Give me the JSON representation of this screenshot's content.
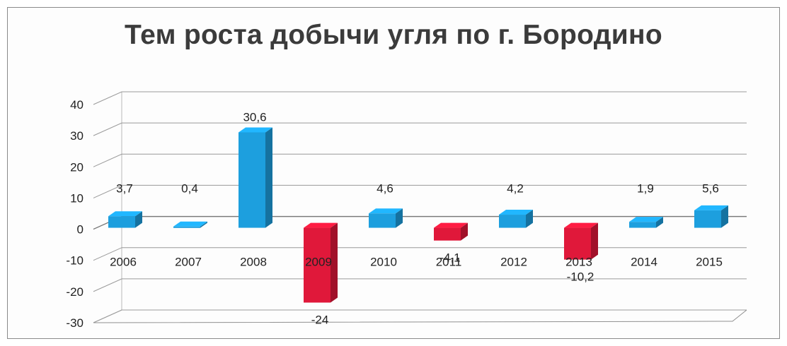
{
  "chart_data": {
    "type": "bar",
    "title": "Тем роста добычи угля по г. Бородино",
    "categories": [
      "2006",
      "2007",
      "2008",
      "2009",
      "2010",
      "2011",
      "2012",
      "2013",
      "2014",
      "2015"
    ],
    "values": [
      3.7,
      0.4,
      30.6,
      -24,
      4.6,
      -4.1,
      4.2,
      -10.2,
      1.9,
      5.6
    ],
    "data_labels": [
      "3,7",
      "0,4",
      "30,6",
      "-24",
      "4,6",
      "-4,1",
      "4,2",
      "-10,2",
      "1,9",
      "5,6"
    ],
    "ylim": [
      -30,
      40
    ],
    "yticks": [
      "40",
      "30",
      "20",
      "10",
      "0",
      "-10",
      "-20",
      "-30"
    ],
    "grid": true,
    "legend": false,
    "colors": {
      "positive": "#1d9fde",
      "negative": "#e0183a"
    }
  }
}
